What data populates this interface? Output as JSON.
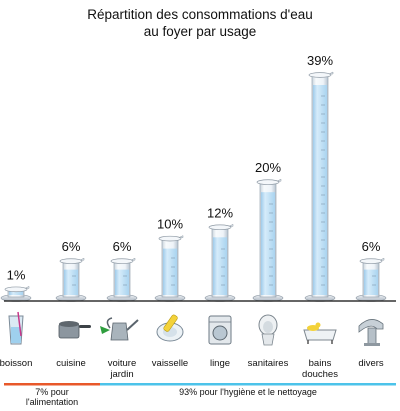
{
  "title_lines": [
    "Répartition des consommations d'eau",
    "au foyer par usage"
  ],
  "chart_data": {
    "type": "bar",
    "title": "Répartition des consommations d'eau au foyer par usage",
    "unit": "%",
    "categories": [
      {
        "label": [
          "boisson"
        ],
        "value": 1,
        "icon": "glass-icon"
      },
      {
        "label": [
          "cuisine"
        ],
        "value": 6,
        "icon": "cooking-pot-icon"
      },
      {
        "label": [
          "voiture",
          "jardin"
        ],
        "value": 6,
        "icon": "watering-can-icon"
      },
      {
        "label": [
          "vaisselle"
        ],
        "value": 10,
        "icon": "dish-sponge-icon"
      },
      {
        "label": [
          "linge"
        ],
        "value": 12,
        "icon": "washing-machine-icon"
      },
      {
        "label": [
          "sanitaires"
        ],
        "value": 20,
        "icon": "toilet-icon"
      },
      {
        "label": [
          "bains",
          "douches"
        ],
        "value": 39,
        "icon": "bathtub-icon"
      },
      {
        "label": [
          "divers"
        ],
        "value": 6,
        "icon": "faucet-icon"
      }
    ],
    "groups": [
      {
        "label": [
          "7% pour",
          "l'alimentation"
        ],
        "color": "#e8582a"
      },
      {
        "label": [
          "93% pour l'hygiène et le nettoyage"
        ],
        "color": "#4cc3ea"
      }
    ],
    "liquid_color": "#b9dcf3",
    "glass_color": "#eef3f8"
  }
}
